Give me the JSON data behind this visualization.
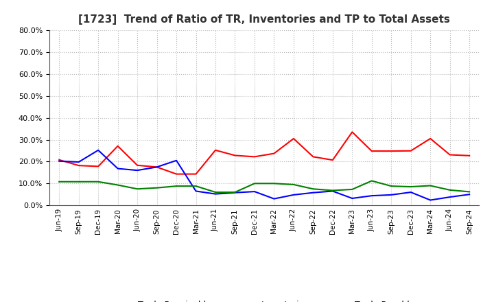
{
  "title": "[1723]  Trend of Ratio of TR, Inventories and TP to Total Assets",
  "labels": [
    "Jun-19",
    "Sep-19",
    "Dec-19",
    "Mar-20",
    "Jun-20",
    "Sep-20",
    "Dec-20",
    "Mar-21",
    "Jun-21",
    "Sep-21",
    "Dec-21",
    "Mar-22",
    "Jun-22",
    "Sep-22",
    "Dec-22",
    "Mar-23",
    "Jun-23",
    "Sep-23",
    "Dec-23",
    "Mar-24",
    "Jun-24",
    "Sep-24"
  ],
  "trade_receivables": [
    0.208,
    0.182,
    0.178,
    0.271,
    0.183,
    0.175,
    0.143,
    0.143,
    0.252,
    0.228,
    0.222,
    0.237,
    0.305,
    0.222,
    0.207,
    0.335,
    0.248,
    0.248,
    0.249,
    0.305,
    0.231,
    0.227
  ],
  "inventories": [
    0.202,
    0.198,
    0.252,
    0.168,
    0.16,
    0.175,
    0.205,
    0.065,
    0.052,
    0.058,
    0.063,
    0.03,
    0.048,
    0.058,
    0.065,
    0.032,
    0.044,
    0.048,
    0.06,
    0.024,
    0.038,
    0.05
  ],
  "trade_payables": [
    0.108,
    0.108,
    0.108,
    0.093,
    0.075,
    0.08,
    0.088,
    0.088,
    0.06,
    0.06,
    0.1,
    0.1,
    0.095,
    0.075,
    0.068,
    0.073,
    0.112,
    0.088,
    0.085,
    0.09,
    0.07,
    0.062
  ],
  "tr_color": "#ff0000",
  "inv_color": "#0000ff",
  "tp_color": "#008000",
  "ylim": [
    0.0,
    0.8
  ],
  "yticks": [
    0.0,
    0.1,
    0.2,
    0.3,
    0.4,
    0.5,
    0.6,
    0.7,
    0.8
  ],
  "background_color": "#ffffff",
  "grid_color": "#aaaaaa",
  "title_fontsize": 11,
  "tick_fontsize": 8,
  "legend_fontsize": 9
}
